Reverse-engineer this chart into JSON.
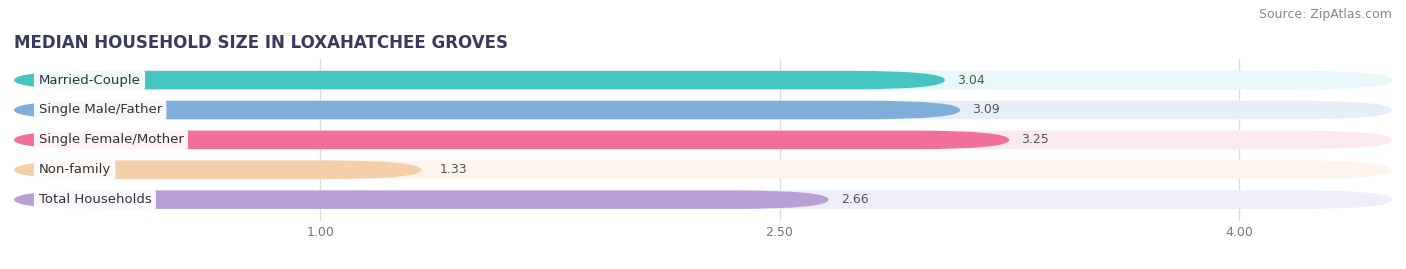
{
  "title": "MEDIAN HOUSEHOLD SIZE IN LOXAHATCHEE GROVES",
  "source": "Source: ZipAtlas.com",
  "categories": [
    "Married-Couple",
    "Single Male/Father",
    "Single Female/Mother",
    "Non-family",
    "Total Households"
  ],
  "values": [
    3.04,
    3.09,
    3.25,
    1.33,
    2.66
  ],
  "bar_colors": [
    "#45c4c0",
    "#7faed9",
    "#f0709a",
    "#f5ceaa",
    "#b8a0d4"
  ],
  "bg_colors": [
    "#e8f7f7",
    "#e8eef8",
    "#fce8f0",
    "#fdf4ec",
    "#f0ecf8"
  ],
  "xmin": 0.0,
  "xlim_left": 0.0,
  "xlim_right": 4.5,
  "xticks": [
    1.0,
    2.5,
    4.0
  ],
  "xtick_labels": [
    "1.00",
    "2.50",
    "4.00"
  ],
  "title_fontsize": 12,
  "source_fontsize": 9,
  "label_fontsize": 9.5,
  "value_fontsize": 9,
  "bar_height": 0.62,
  "background_color": "#ffffff",
  "grid_color": "#dddddd"
}
